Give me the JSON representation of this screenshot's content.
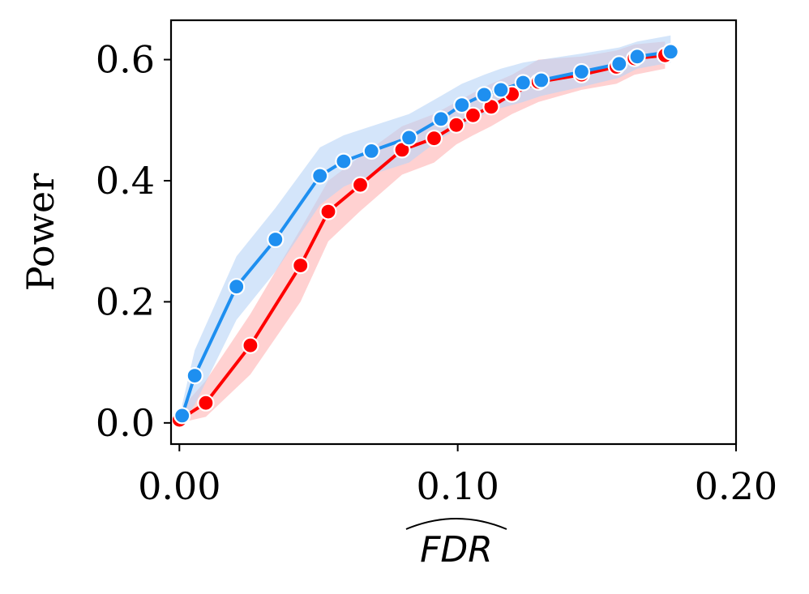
{
  "chart_data": {
    "type": "line",
    "title": "",
    "xlabel": "FDR",
    "xlabel_hat": true,
    "ylabel": "Power",
    "xlim": [
      -0.003,
      0.2
    ],
    "ylim": [
      -0.035,
      0.665
    ],
    "xticks": [
      0.0,
      0.1,
      0.2
    ],
    "xtick_labels": [
      "0.00",
      "0.10",
      "0.20"
    ],
    "yticks": [
      0.0,
      0.2,
      0.4,
      0.6
    ],
    "ytick_labels": [
      "0.0",
      "0.2",
      "0.4",
      "0.6"
    ],
    "grid": false,
    "series": [
      {
        "name": "red",
        "color": "#ff0000",
        "band_color": "#ffb3b3",
        "x": [
          0.0,
          0.0095,
          0.0255,
          0.0435,
          0.0535,
          0.065,
          0.08,
          0.0915,
          0.0995,
          0.1055,
          0.112,
          0.1195,
          0.129,
          0.1445,
          0.157,
          0.1635,
          0.1745
        ],
        "y": [
          0.005,
          0.033,
          0.128,
          0.26,
          0.349,
          0.393,
          0.451,
          0.47,
          0.492,
          0.508,
          0.522,
          0.543,
          0.563,
          0.575,
          0.588,
          0.602,
          0.607
        ],
        "lower": [
          0.0,
          0.01,
          0.08,
          0.2,
          0.3,
          0.35,
          0.41,
          0.43,
          0.46,
          0.475,
          0.49,
          0.51,
          0.53,
          0.55,
          0.56,
          0.575,
          0.585
        ],
        "upper": [
          0.02,
          0.07,
          0.18,
          0.32,
          0.4,
          0.44,
          0.49,
          0.51,
          0.53,
          0.545,
          0.56,
          0.575,
          0.6,
          0.605,
          0.615,
          0.625,
          0.63
        ]
      },
      {
        "name": "blue",
        "color": "#1e8ff0",
        "band_color": "#b7d4f7",
        "x": [
          0.001,
          0.0055,
          0.0205,
          0.0345,
          0.0505,
          0.059,
          0.069,
          0.0825,
          0.094,
          0.1015,
          0.1095,
          0.1155,
          0.1235,
          0.13,
          0.1445,
          0.158,
          0.1645,
          0.1765
        ],
        "y": [
          0.012,
          0.078,
          0.225,
          0.303,
          0.408,
          0.432,
          0.449,
          0.471,
          0.502,
          0.525,
          0.542,
          0.55,
          0.562,
          0.566,
          0.58,
          0.593,
          0.605,
          0.613
        ],
        "lower": [
          0.0,
          0.03,
          0.17,
          0.25,
          0.36,
          0.39,
          0.41,
          0.43,
          0.47,
          0.49,
          0.51,
          0.52,
          0.53,
          0.54,
          0.555,
          0.57,
          0.585,
          0.595
        ],
        "upper": [
          0.03,
          0.12,
          0.275,
          0.355,
          0.455,
          0.475,
          0.49,
          0.51,
          0.54,
          0.56,
          0.575,
          0.585,
          0.595,
          0.6,
          0.61,
          0.62,
          0.63,
          0.64
        ]
      }
    ]
  }
}
